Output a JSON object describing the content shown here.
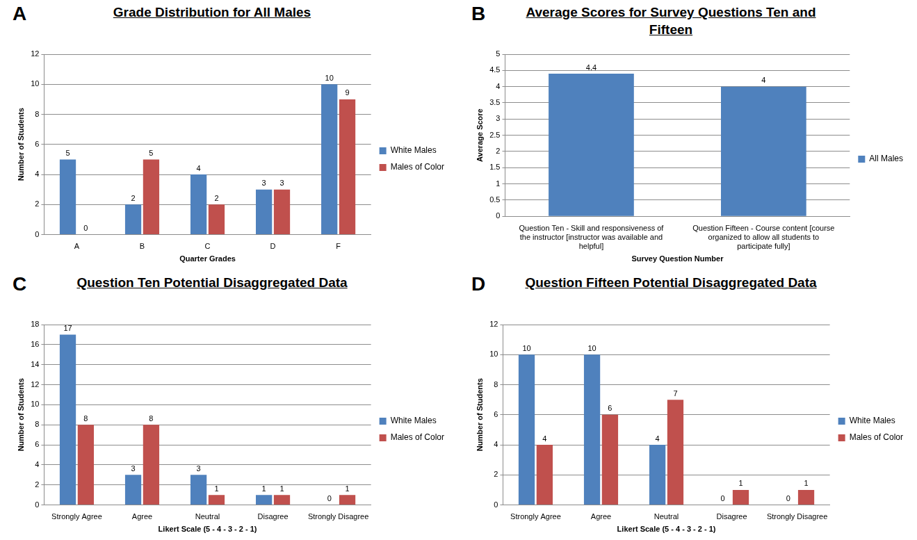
{
  "chart_data": [
    {
      "panel": "A",
      "type": "bar",
      "title": "Grade Distribution for All Males",
      "categories": [
        "A",
        "B",
        "C",
        "D",
        "F"
      ],
      "series": [
        {
          "name": "White Males",
          "color": "#4f81bd",
          "values": [
            5,
            2,
            4,
            3,
            10
          ]
        },
        {
          "name": "Males of Color",
          "color": "#c0504d",
          "values": [
            0,
            5,
            2,
            3,
            9
          ]
        }
      ],
      "x_label": "Quarter Grades",
      "y_label": "Number of Students",
      "ylim": [
        0,
        12
      ],
      "yticks": [
        0,
        2,
        4,
        6,
        8,
        10,
        12
      ],
      "grid": true,
      "legend": "right",
      "data_labels": true
    },
    {
      "panel": "B",
      "type": "bar",
      "title": "Average Scores for Survey Questions Ten and Fifteen",
      "categories": [
        "Question Ten - Skill and responsiveness of the instructor [instructor was available and helpful]",
        "Question Fifteen - Course content [course organized to allow all students to participate fully]"
      ],
      "series": [
        {
          "name": "All Males",
          "color": "#4f81bd",
          "values": [
            4.4,
            4
          ]
        }
      ],
      "x_label": "Survey Question Number",
      "y_label": "Average Score",
      "ylim": [
        0,
        5
      ],
      "yticks": [
        0,
        0.5,
        1,
        1.5,
        2,
        2.5,
        3,
        3.5,
        4,
        4.5,
        5
      ],
      "grid": true,
      "legend": "right",
      "data_labels": true
    },
    {
      "panel": "C",
      "type": "bar",
      "title": "Question Ten Potential Disaggregated Data",
      "categories": [
        "Strongly Agree",
        "Agree",
        "Neutral",
        "Disagree",
        "Strongly Disagree"
      ],
      "series": [
        {
          "name": "White Males",
          "color": "#4f81bd",
          "values": [
            17,
            3,
            3,
            1,
            0
          ]
        },
        {
          "name": "Males of Color",
          "color": "#c0504d",
          "values": [
            8,
            8,
            1,
            1,
            1
          ]
        }
      ],
      "x_label": "Likert Scale (5 - 4 - 3 - 2 - 1)",
      "y_label": "Number of Students",
      "ylim": [
        0,
        18
      ],
      "yticks": [
        0,
        2,
        4,
        6,
        8,
        10,
        12,
        14,
        16,
        18
      ],
      "grid": true,
      "legend": "right",
      "data_labels": true
    },
    {
      "panel": "D",
      "type": "bar",
      "title": "Question Fifteen Potential Disaggregated Data",
      "categories": [
        "Strongly Agree",
        "Agree",
        "Neutral",
        "Disagree",
        "Strongly Disagree"
      ],
      "series": [
        {
          "name": "White Males",
          "color": "#4f81bd",
          "values": [
            10,
            10,
            4,
            0,
            0
          ]
        },
        {
          "name": "Males of Color",
          "color": "#c0504d",
          "values": [
            4,
            6,
            7,
            1,
            1
          ]
        }
      ],
      "x_label": "Likert Scale (5 - 4 - 3 - 2 - 1)",
      "y_label": "Number of Students",
      "ylim": [
        0,
        12
      ],
      "yticks": [
        0,
        2,
        4,
        6,
        8,
        10,
        12
      ],
      "grid": true,
      "legend": "right",
      "data_labels": true
    }
  ]
}
